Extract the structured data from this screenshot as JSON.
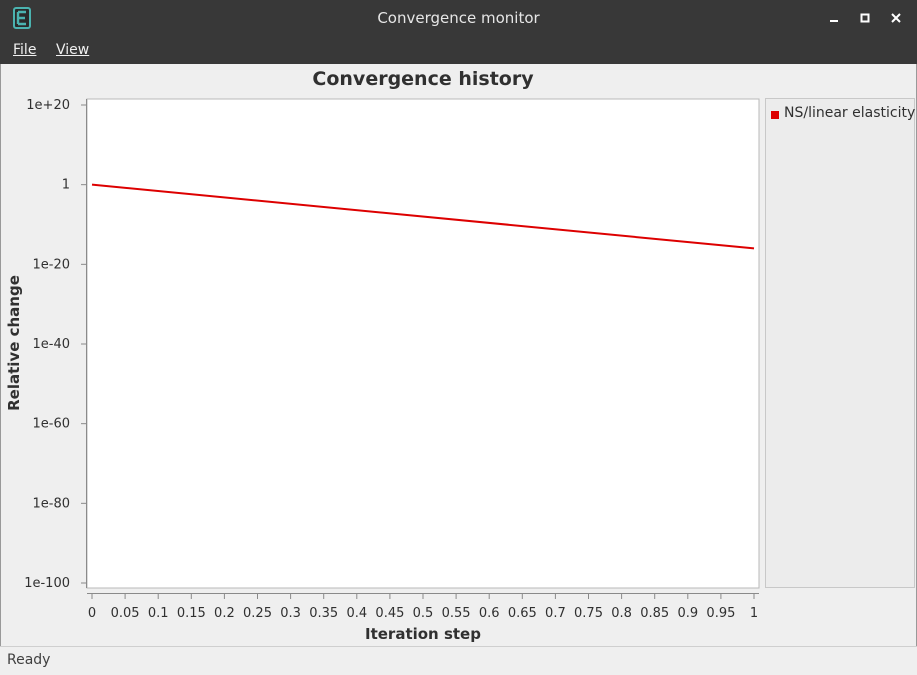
{
  "window": {
    "title": "Convergence monitor",
    "app_icon": "E",
    "min_label": "▁",
    "max_label": "□",
    "close_label": "✕"
  },
  "menu": {
    "file": "File",
    "view": "View"
  },
  "status": {
    "text": "Ready"
  },
  "colors": {
    "series": "#dd0000",
    "titlebar": "#383838"
  },
  "chart_data": {
    "type": "line",
    "title": "Convergence history",
    "xlabel": "Iteration step",
    "ylabel": "Relative change",
    "y_scale": "log",
    "xlim": [
      0,
      1
    ],
    "ylim_exp": [
      -100,
      20
    ],
    "x_ticks": [
      "0",
      "0.05",
      "0.1",
      "0.15",
      "0.2",
      "0.25",
      "0.3",
      "0.35",
      "0.4",
      "0.45",
      "0.5",
      "0.55",
      "0.6",
      "0.65",
      "0.7",
      "0.75",
      "0.8",
      "0.85",
      "0.9",
      "0.95",
      "1"
    ],
    "y_ticks": [
      "1e+20",
      "1",
      "1e-20",
      "1e-40",
      "1e-60",
      "1e-80",
      "1e-100"
    ],
    "series": [
      {
        "name": "NS/linear elasticity",
        "x": [
          0,
          1
        ],
        "y": [
          1.0,
          1e-16
        ]
      }
    ],
    "legend": "right",
    "grid": false
  }
}
